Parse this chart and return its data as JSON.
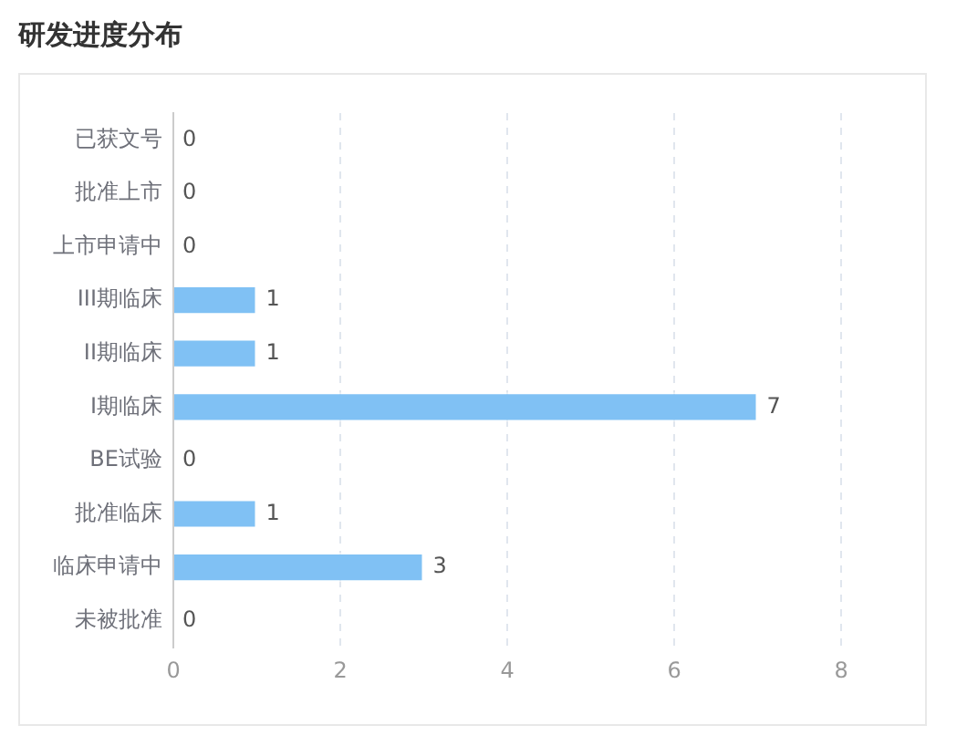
{
  "chart_data": {
    "type": "bar",
    "orientation": "horizontal",
    "title": "研发进度分布",
    "categories": [
      "已获文号",
      "批准上市",
      "上市申请中",
      "III期临床",
      "II期临床",
      "I期临床",
      "BE试验",
      "批准临床",
      "临床申请中",
      "未被批准"
    ],
    "values": [
      0,
      0,
      0,
      1,
      1,
      7,
      0,
      1,
      3,
      0
    ],
    "color": "#80c1f4",
    "xlim": [
      0,
      8
    ],
    "xticks": [
      0,
      2,
      4,
      6,
      8
    ],
    "grid": "x",
    "data_labels": true
  }
}
